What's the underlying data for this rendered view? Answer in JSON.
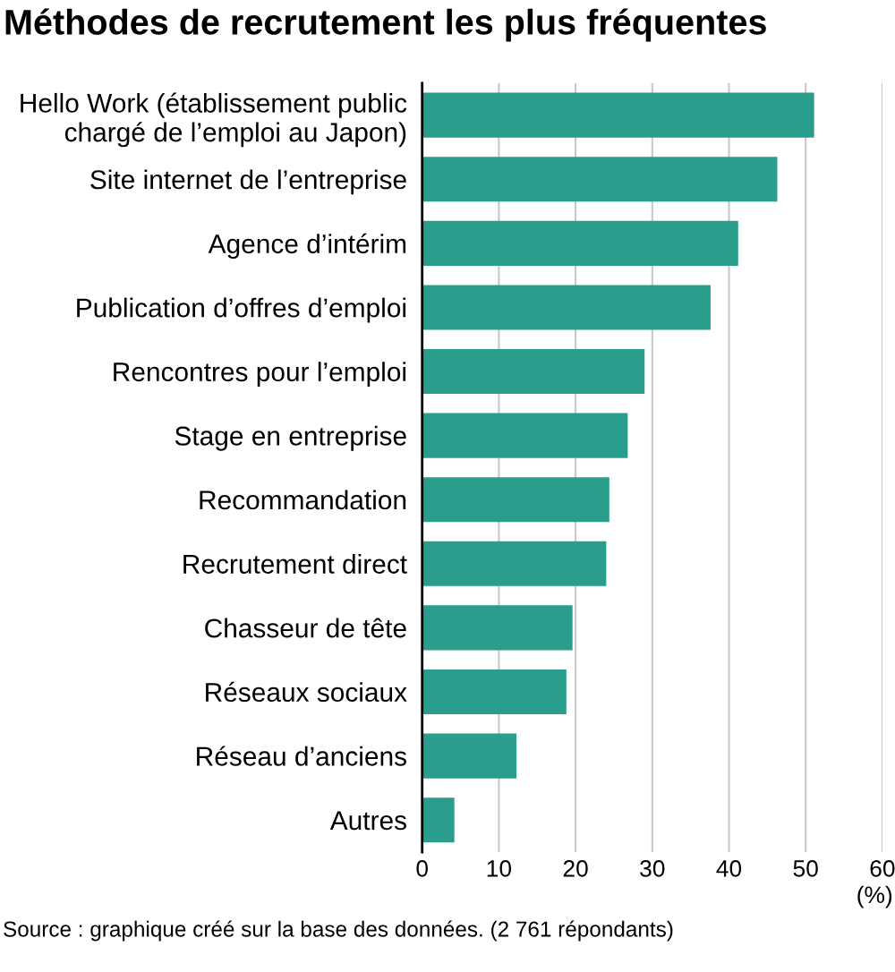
{
  "chart_data": {
    "type": "bar",
    "orientation": "horizontal",
    "title": "Méthodes de recrutement les plus fréquentes",
    "xlabel": "(%)",
    "categories": [
      "Hello Work (établissement public\nchargé de l’emploi au Japon)",
      "Site internet de l’entreprise",
      "Agence d’intérim",
      "Publication d’offres d’emploi",
      "Rencontres pour l’emploi",
      "Stage en entreprise",
      "Recommandation",
      "Recrutement direct",
      "Chasseur de tête",
      "Réseaux sociaux",
      "Réseau d’anciens",
      "Autres"
    ],
    "values": [
      51.1,
      46.3,
      41.2,
      37.6,
      29.0,
      26.8,
      24.4,
      24.0,
      19.6,
      18.8,
      12.3,
      4.2
    ],
    "color": "#2a9d8c",
    "xlim": [
      0,
      60
    ],
    "xticks": [
      0,
      10,
      20,
      30,
      40,
      50,
      60
    ],
    "grid": "x",
    "annotations": [
      "Source : graphique créé sur la base des données. (2 761 répondants)"
    ]
  }
}
